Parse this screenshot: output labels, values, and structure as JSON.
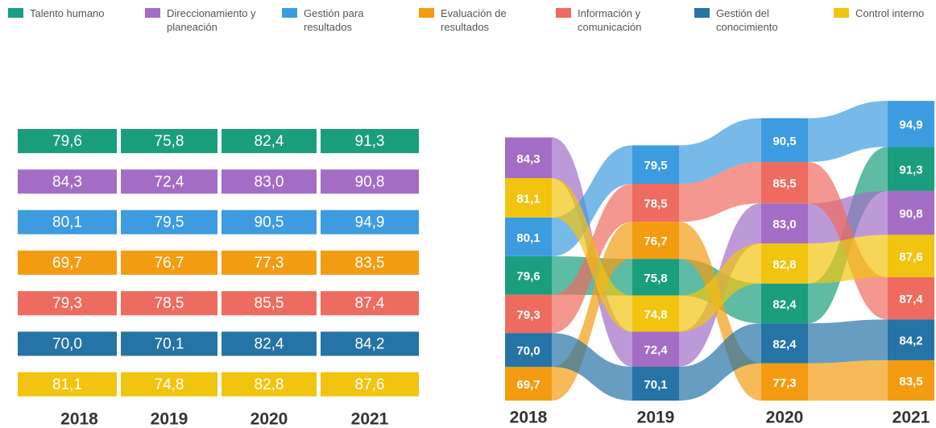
{
  "chart_data": {
    "type": "bump",
    "categories": [
      "2018",
      "2019",
      "2020",
      "2021"
    ],
    "series": [
      {
        "name": "Talento humano",
        "color": "#1a9e7e",
        "values": [
          79.6,
          75.8,
          82.4,
          91.3
        ],
        "value_labels": [
          "79,6",
          "75,8",
          "82,4",
          "91,3"
        ]
      },
      {
        "name": "Direccionamiento y planeación",
        "color": "#a36dc6",
        "values": [
          84.3,
          72.4,
          83.0,
          90.8
        ],
        "value_labels": [
          "84,3",
          "72,4",
          "83,0",
          "90,8"
        ]
      },
      {
        "name": "Gestión para resultados",
        "color": "#3d9be0",
        "values": [
          80.1,
          79.5,
          90.5,
          94.9
        ],
        "value_labels": [
          "80,1",
          "79,5",
          "90,5",
          "94,9"
        ]
      },
      {
        "name": "Evaluación de resultados",
        "color": "#f39c12",
        "values": [
          69.7,
          76.7,
          77.3,
          83.5
        ],
        "value_labels": [
          "69,7",
          "76,7",
          "77,3",
          "83,5"
        ]
      },
      {
        "name": "Información y comunicación",
        "color": "#ee6b60",
        "values": [
          79.3,
          78.5,
          85.5,
          87.4
        ],
        "value_labels": [
          "79,3",
          "78,5",
          "85,5",
          "87,4"
        ]
      },
      {
        "name": "Gestión del conocimiento",
        "color": "#2673a6",
        "values": [
          70.0,
          70.1,
          82.4,
          84.2
        ],
        "value_labels": [
          "70,0",
          "70,1",
          "82,4",
          "84,2"
        ]
      },
      {
        "name": "Control interno",
        "color": "#f1c40f",
        "values": [
          81.1,
          74.8,
          82.8,
          87.6
        ],
        "value_labels": [
          "81,1",
          "74,8",
          "82,8",
          "87,6"
        ]
      }
    ]
  }
}
